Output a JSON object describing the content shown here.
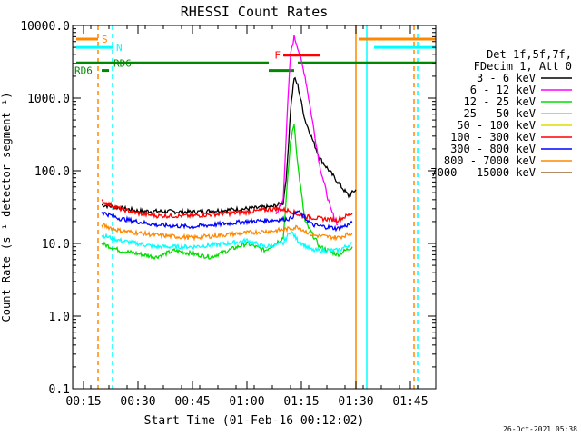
{
  "chart_data": {
    "type": "line",
    "title": "RHESSI Count Rates",
    "xlabel": "Start Time (01-Feb-16 00:12:02)",
    "ylabel": "Count Rate (s⁻¹ detector segment⁻¹)",
    "yscale": "log",
    "ylim": [
      0.1,
      10000
    ],
    "xlim": [
      "00:12",
      "01:52"
    ],
    "y_ticks": [
      "0.1",
      "1.0",
      "10.0",
      "100.0",
      "1000.0",
      "10000.0"
    ],
    "x_ticks": [
      "00:15",
      "00:30",
      "00:45",
      "01:00",
      "01:15",
      "01:30",
      "01:45"
    ],
    "legend_header": [
      "Det 1f,5f,7f,",
      "FDecim 1, Att 0"
    ],
    "legend_position": "right",
    "grid": false,
    "series": [
      {
        "name": "3 - 6 keV",
        "color": "#000000",
        "x": [
          "00:20",
          "00:30",
          "00:45",
          "01:00",
          "01:07",
          "01:10",
          "01:11",
          "01:12",
          "01:13",
          "01:14",
          "01:16",
          "01:20",
          "01:25",
          "01:28",
          "01:30"
        ],
        "values": [
          34,
          28,
          27,
          30,
          32,
          36,
          100,
          700,
          1900,
          1500,
          500,
          150,
          70,
          45,
          55
        ]
      },
      {
        "name": "6 - 12 keV",
        "color": "#ff00ff",
        "x": [
          "01:08",
          "01:10",
          "01:11",
          "01:12",
          "01:13",
          "01:14",
          "01:16",
          "01:18",
          "01:20",
          "01:23",
          "01:25"
        ],
        "values": [
          25,
          40,
          500,
          4000,
          7000,
          5000,
          2000,
          500,
          120,
          30,
          18
        ]
      },
      {
        "name": "12 - 25 keV",
        "color": "#00dd00",
        "x": [
          "00:20",
          "00:25",
          "00:35",
          "00:40",
          "00:50",
          "01:00",
          "01:05",
          "01:10",
          "01:12",
          "01:13",
          "01:14",
          "01:16",
          "01:20",
          "01:25",
          "01:29"
        ],
        "values": [
          10,
          8,
          6.5,
          8,
          6.5,
          10,
          8,
          12,
          250,
          450,
          120,
          20,
          9,
          7,
          9
        ]
      },
      {
        "name": "25 - 50 keV",
        "color": "#00ffff",
        "x": [
          "00:20",
          "00:25",
          "00:35",
          "00:45",
          "00:55",
          "01:00",
          "01:05",
          "01:10",
          "01:12",
          "01:14",
          "01:18",
          "01:25",
          "01:29"
        ],
        "values": [
          13,
          11,
          9,
          9,
          10,
          11,
          9,
          10,
          15,
          11,
          8,
          8,
          10
        ]
      },
      {
        "name": "50 - 100 keV",
        "color": "#dddd00",
        "x": [],
        "values": []
      },
      {
        "name": "100 - 300 keV",
        "color": "#ff0000",
        "x": [
          "00:20",
          "00:25",
          "00:30",
          "00:35",
          "00:45",
          "01:00",
          "01:08",
          "01:12",
          "01:15",
          "01:20",
          "01:25",
          "01:29"
        ],
        "values": [
          38,
          30,
          26,
          24,
          24,
          27,
          30,
          28,
          24,
          22,
          21,
          26
        ]
      },
      {
        "name": "300 - 800 keV",
        "color": "#0000ff",
        "x": [
          "00:20",
          "00:25",
          "00:35",
          "00:45",
          "01:00",
          "01:08",
          "01:12",
          "01:14",
          "01:18",
          "01:25",
          "01:29"
        ],
        "values": [
          27,
          22,
          18,
          17,
          20,
          21,
          22,
          28,
          18,
          16,
          19
        ]
      },
      {
        "name": "800 - 7000 keV",
        "color": "#ff8800",
        "x": [
          "00:20",
          "00:25",
          "00:35",
          "00:45",
          "01:00",
          "01:08",
          "01:12",
          "01:14",
          "01:18",
          "01:25",
          "01:29"
        ],
        "values": [
          18,
          15,
          13,
          12,
          14,
          15,
          16,
          17,
          13,
          12,
          14
        ]
      },
      {
        "name": "7000 - 15000 keV",
        "color": "#996633",
        "x": [],
        "values": []
      }
    ],
    "annotations": [
      {
        "label": "S",
        "color": "#ff8800",
        "x_start": "00:13",
        "x_end": "00:19",
        "value": 6500
      },
      {
        "label": "N",
        "color": "#00ffff",
        "x_start": "00:13",
        "x_end": "00:23",
        "value": 5000
      },
      {
        "label": "RD6",
        "color": "#008800",
        "x_start": "00:20",
        "x_end": "00:22",
        "value": 2400
      },
      {
        "label": "RD6",
        "color": "#008800",
        "x_start": "00:13",
        "x_end": "01:06",
        "value": 3050
      },
      {
        "label": "F",
        "color": "#ff0000",
        "x_start": "01:10",
        "x_end": "01:20",
        "value": 3900
      }
    ],
    "flags": {
      "att_segments": [
        {
          "color": "#008800",
          "x_start": "01:06",
          "x_end": "01:13",
          "value": 2400
        },
        {
          "color": "#008800",
          "x_start": "01:14",
          "x_end": "01:52",
          "value": 3050
        },
        {
          "color": "#ff8800",
          "x_start": "01:31",
          "x_end": "01:52",
          "value": 6500
        },
        {
          "color": "#00ffff",
          "x_start": "01:35",
          "x_end": "01:52",
          "value": 5000
        }
      ],
      "vertical_lines": [
        {
          "color": "#00ffff",
          "x": "00:12",
          "style": "solid"
        },
        {
          "color": "#ff8800",
          "x": "00:19",
          "style": "dashed"
        },
        {
          "color": "#00ffff",
          "x": "00:23",
          "style": "dashed"
        },
        {
          "color": "#ff8800",
          "x": "01:30",
          "style": "solid"
        },
        {
          "color": "#00ffff",
          "x": "01:33",
          "style": "solid"
        },
        {
          "color": "#ff8800",
          "x": "01:46",
          "style": "dashed"
        },
        {
          "color": "#00ffff",
          "x": "01:47",
          "style": "dashed"
        }
      ]
    }
  },
  "footer_timestamp": "26-Oct-2021 05:38"
}
